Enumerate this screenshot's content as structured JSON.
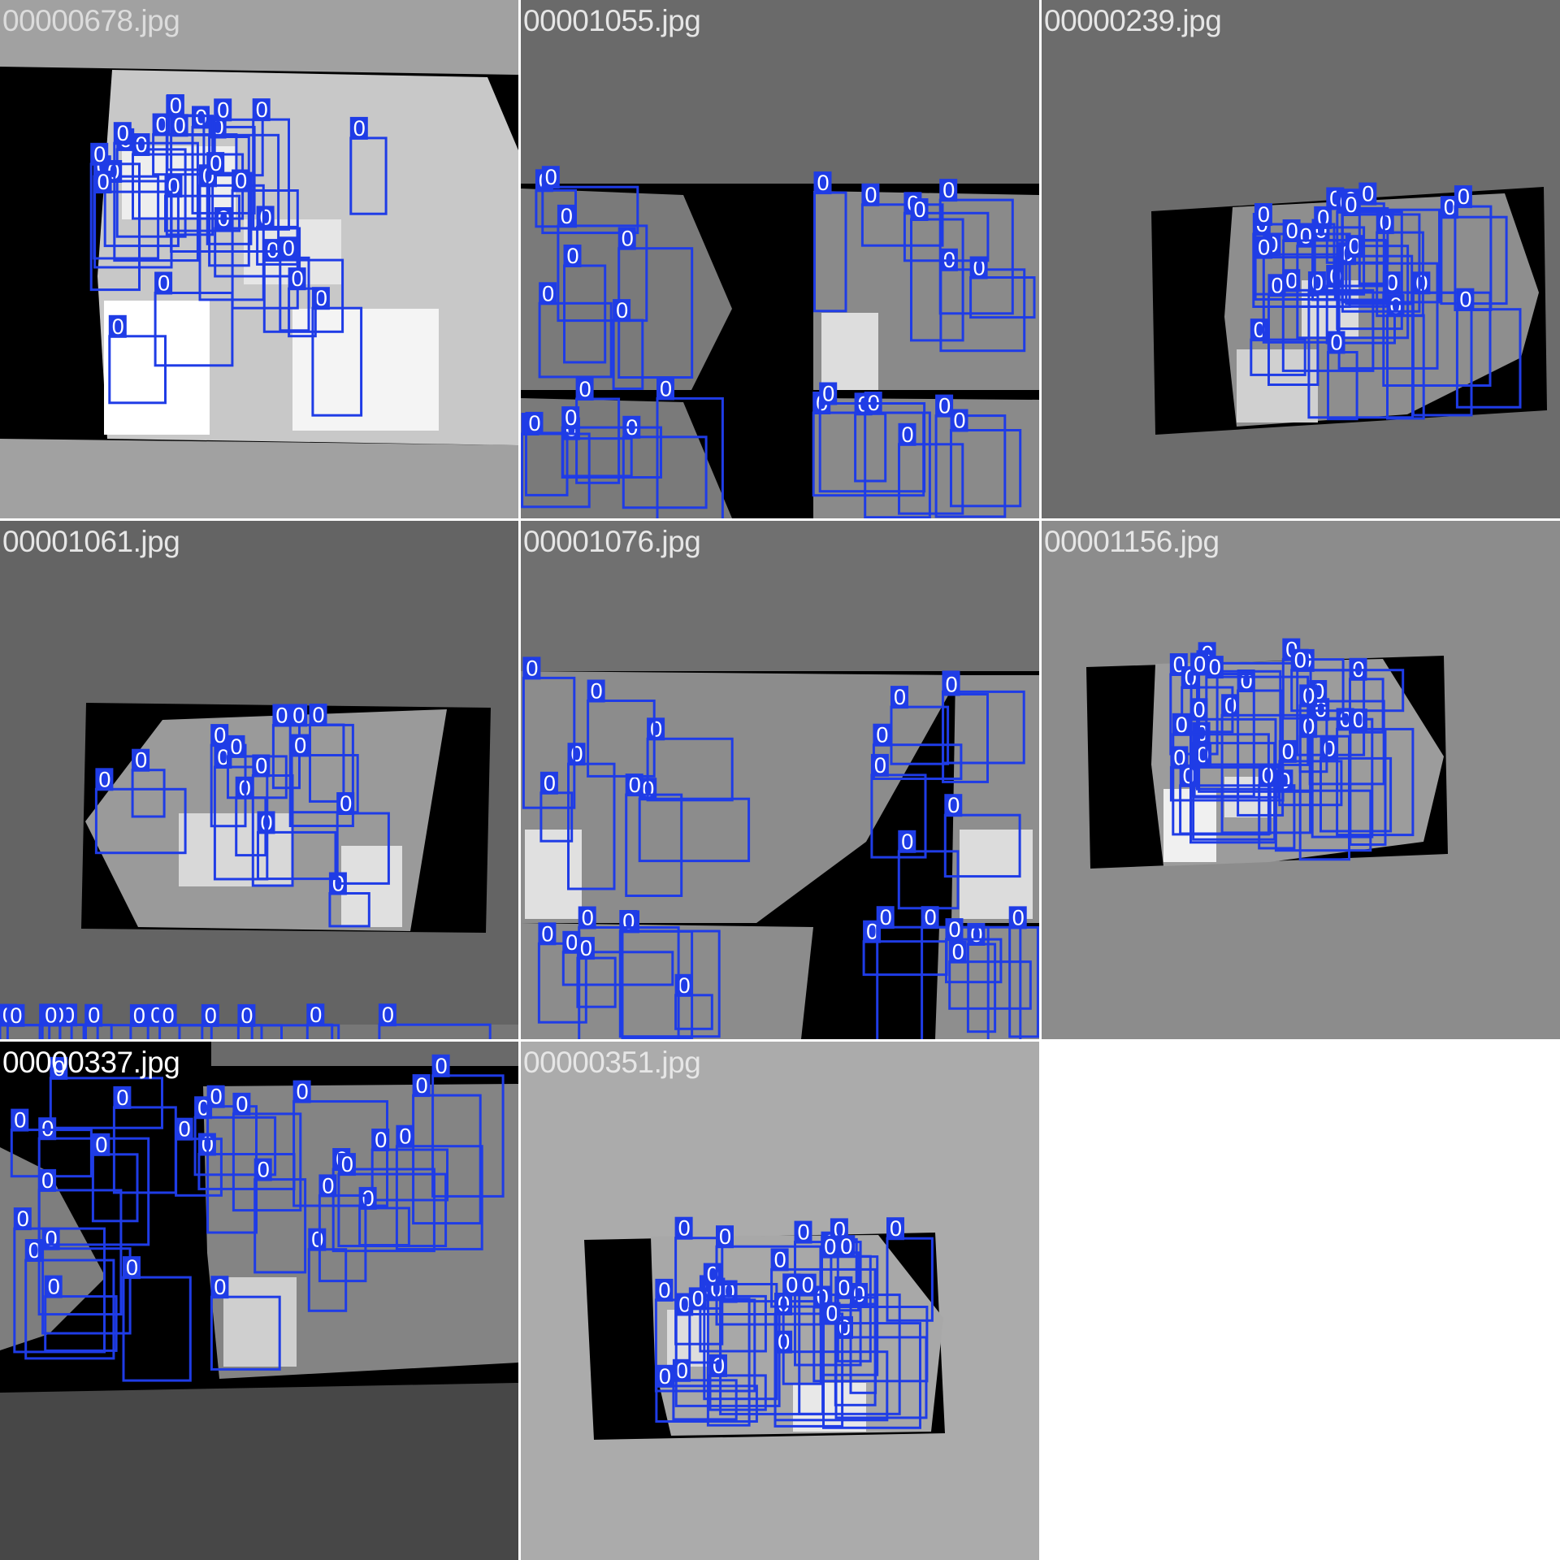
{
  "mosaic": {
    "colors": {
      "box": "#1f3ce6",
      "label_bg": "#1f3ce6",
      "label_text": "#ffffff",
      "grid_bg": "#ffffff"
    },
    "tiles": [
      {
        "filename": "00000678.jpg",
        "bg": "#a1a1a1",
        "text_color": "#dcdcdc",
        "class_label": "0"
      },
      {
        "filename": "00001055.jpg",
        "bg": "#6a6a6a",
        "text_color": "#e6e6e6",
        "class_label": "0"
      },
      {
        "filename": "00000239.jpg",
        "bg": "#6c6c6c",
        "text_color": "#e6e6e6",
        "class_label": "0"
      },
      {
        "filename": "00001061.jpg",
        "bg": "#646464",
        "text_color": "#e6e6e6",
        "class_label": "0"
      },
      {
        "filename": "00001076.jpg",
        "bg": "#707070",
        "text_color": "#e6e6e6",
        "class_label": "0"
      },
      {
        "filename": "00001156.jpg",
        "bg": "#8c8c8c",
        "text_color": "#e6e6e6",
        "class_label": "0"
      },
      {
        "filename": "00000337.jpg",
        "bg": "#474747",
        "text_color": "#ffffff",
        "class_label": "0"
      },
      {
        "filename": "00000351.jpg",
        "bg": "#ababab",
        "text_color": "#e6e6e6",
        "class_label": "0"
      }
    ]
  }
}
